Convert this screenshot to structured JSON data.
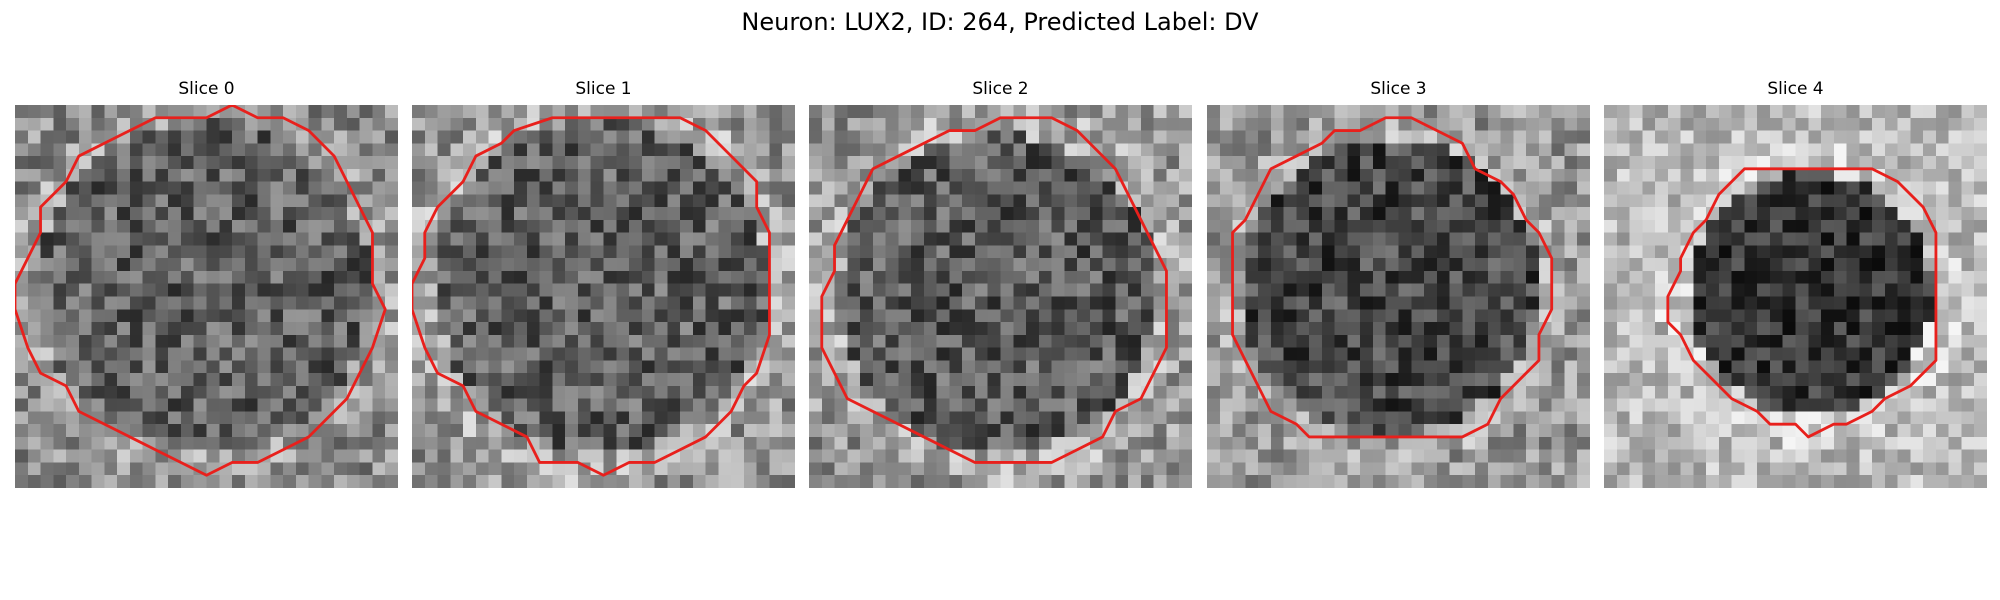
{
  "title": "Neuron: LUX2, ID: 264, Predicted Label: DV",
  "colors": {
    "contour": "#e8201c",
    "background": "#ffffff"
  },
  "slices": [
    {
      "label": "Slice 0"
    },
    {
      "label": "Slice 1"
    },
    {
      "label": "Slice 2"
    },
    {
      "label": "Slice 3"
    },
    {
      "label": "Slice 4"
    }
  ]
}
